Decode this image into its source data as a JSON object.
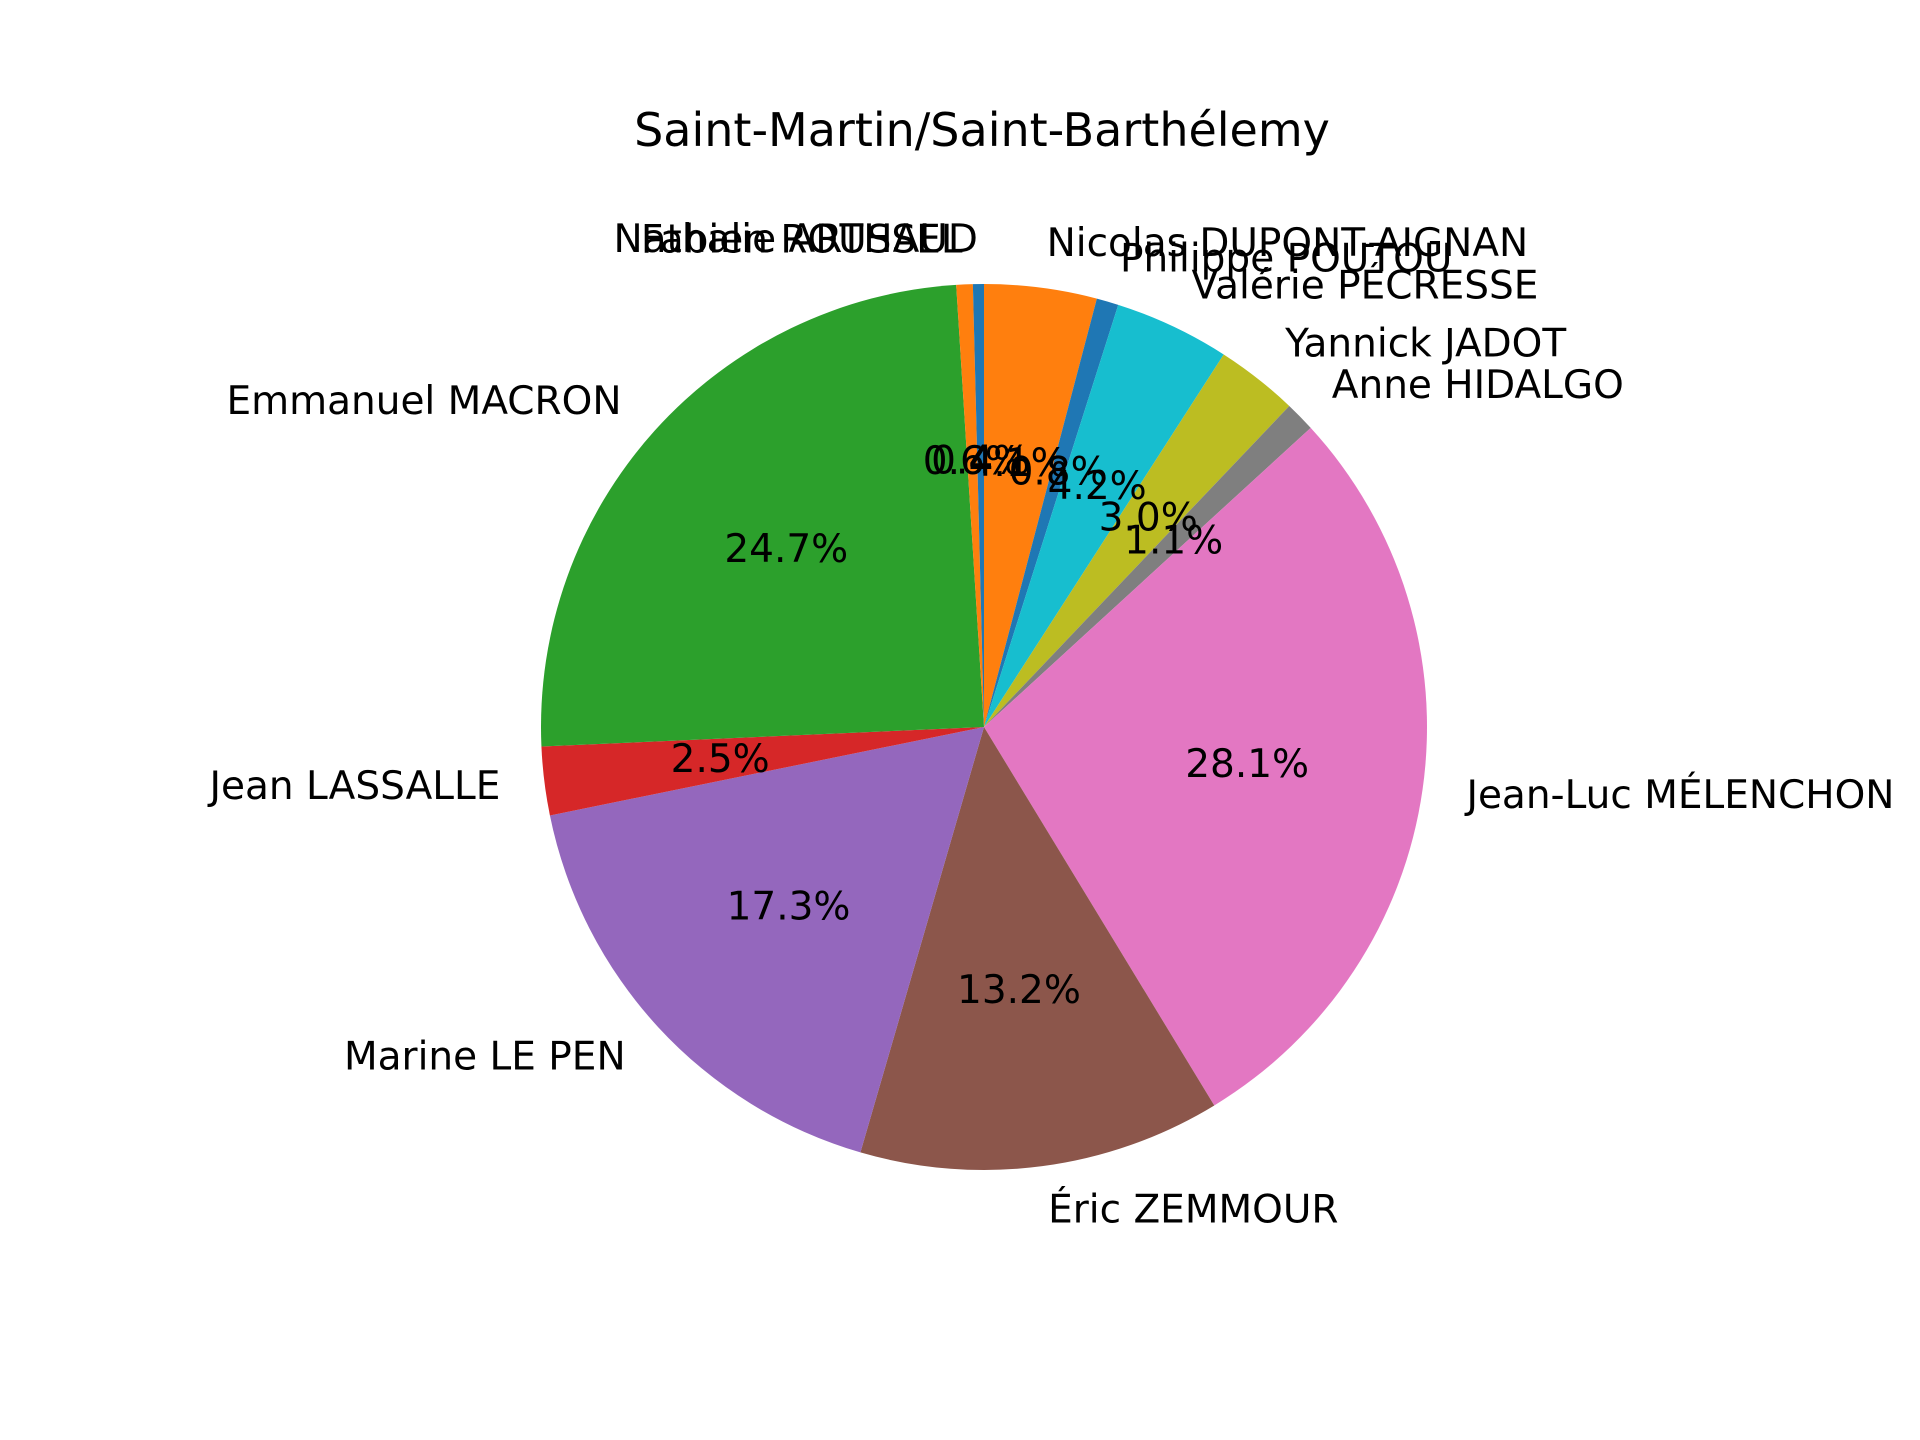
{
  "chart_data": {
    "type": "pie",
    "title": "Saint-Martin/Saint-Barthélemy",
    "start_angle_deg": 90,
    "direction": "clockwise",
    "slices": [
      {
        "label": "Nicolas DUPONT-AIGNAN",
        "pct_label": "4.1%",
        "value": 4.1,
        "color": "#ff7f0e"
      },
      {
        "label": "Philippe POUTOU",
        "pct_label": "0.8%",
        "value": 0.8,
        "color": "#1f77b4"
      },
      {
        "label": "Valérie PÉCRESSE",
        "pct_label": "4.2%",
        "value": 4.2,
        "color": "#17becf"
      },
      {
        "label": "Yannick JADOT",
        "pct_label": "3.0%",
        "value": 3.0,
        "color": "#bcbd22"
      },
      {
        "label": "Anne HIDALGO",
        "pct_label": "1.1%",
        "value": 1.1,
        "color": "#7f7f7f"
      },
      {
        "label": "Jean-Luc MÉLENCHON",
        "pct_label": "28.1%",
        "value": 28.1,
        "color": "#e377c2"
      },
      {
        "label": "Éric ZEMMOUR",
        "pct_label": "13.2%",
        "value": 13.2,
        "color": "#8c564b"
      },
      {
        "label": "Marine LE PEN",
        "pct_label": "17.3%",
        "value": 17.3,
        "color": "#9467bd"
      },
      {
        "label": "Jean LASSALLE",
        "pct_label": "2.5%",
        "value": 2.5,
        "color": "#d62728"
      },
      {
        "label": "Emmanuel MACRON",
        "pct_label": "24.7%",
        "value": 24.7,
        "color": "#2ca02c"
      },
      {
        "label": "Fabien ROUSSEL",
        "pct_label": "0.6%",
        "value": 0.6,
        "color": "#ff7f0e"
      },
      {
        "label": "Nathalie ARTHAUD",
        "pct_label": "0.4%",
        "value": 0.4,
        "color": "#1f77b4"
      }
    ]
  }
}
